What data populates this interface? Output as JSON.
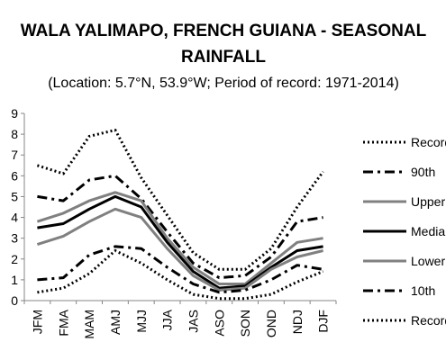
{
  "chart_data": {
    "type": "line",
    "title_line1": "WALA YALIMAPO, FRENCH GUIANA - SEASONAL",
    "title_line2": "RAINFALL",
    "subtitle": "(Location: 5.7°N, 53.9°W; Period of record: 1971-2014)",
    "categories": [
      "JFM",
      "FMA",
      "MAM",
      "AMJ",
      "MJJ",
      "JJA",
      "JAS",
      "ASO",
      "SON",
      "OND",
      "NDJ",
      "DJF"
    ],
    "ylim": [
      0,
      9
    ],
    "ytick_values": [
      0,
      1,
      2,
      3,
      4,
      5,
      6,
      7,
      8,
      9
    ],
    "grid": false,
    "legend_position": "right",
    "series": [
      {
        "name": "Record",
        "color": "#000000",
        "dash": "dotted",
        "values": [
          6.5,
          6.1,
          7.9,
          8.2,
          5.9,
          4.1,
          2.3,
          1.5,
          1.5,
          2.5,
          4.5,
          6.2
        ]
      },
      {
        "name": "90th",
        "color": "#000000",
        "dash": "dashdot",
        "values": [
          5.0,
          4.8,
          5.8,
          6.0,
          4.9,
          3.3,
          1.8,
          1.1,
          1.2,
          2.1,
          3.8,
          4.0
        ]
      },
      {
        "name": "Upper",
        "color": "#808080",
        "dash": "solid",
        "values": [
          3.8,
          4.2,
          4.8,
          5.2,
          4.8,
          3.0,
          1.6,
          0.8,
          0.8,
          1.8,
          2.8,
          3.0
        ]
      },
      {
        "name": "Median",
        "color": "#000000",
        "dash": "solid",
        "values": [
          3.5,
          3.7,
          4.4,
          5.0,
          4.5,
          2.8,
          1.4,
          0.6,
          0.7,
          1.6,
          2.4,
          2.6
        ]
      },
      {
        "name": "Lower",
        "color": "#808080",
        "dash": "solid",
        "values": [
          2.7,
          3.1,
          3.8,
          4.4,
          4.0,
          2.5,
          1.2,
          0.5,
          0.6,
          1.5,
          2.1,
          2.4
        ]
      },
      {
        "name": "10th",
        "color": "#000000",
        "dash": "dashdot",
        "values": [
          1.0,
          1.1,
          2.2,
          2.6,
          2.5,
          1.6,
          0.8,
          0.4,
          0.5,
          1.0,
          1.7,
          1.5
        ]
      },
      {
        "name": "Record",
        "color": "#000000",
        "dash": "dotted",
        "values": [
          0.4,
          0.6,
          1.3,
          2.4,
          1.8,
          1.0,
          0.3,
          0.1,
          0.1,
          0.3,
          0.9,
          1.4
        ]
      }
    ]
  }
}
